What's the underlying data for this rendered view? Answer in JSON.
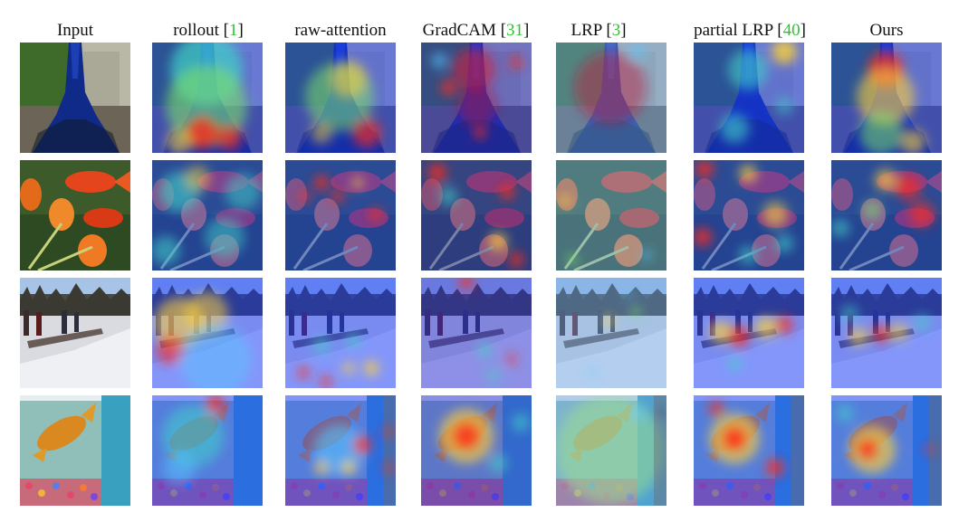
{
  "figure": {
    "columns": [
      {
        "label": "Input",
        "cite": ""
      },
      {
        "label": "rollout",
        "cite": "1"
      },
      {
        "label": "raw-attention",
        "cite": ""
      },
      {
        "label": "GradCAM",
        "cite": "31"
      },
      {
        "label": "LRP",
        "cite": "3"
      },
      {
        "label": "partial LRP",
        "cite": "40"
      },
      {
        "label": "Ours",
        "cite": ""
      }
    ],
    "rows": [
      {
        "subject": "peacock"
      },
      {
        "subject": "goldfish-and-tulips"
      },
      {
        "subject": "dog-sled-on-snow"
      },
      {
        "subject": "goldfish-in-tank"
      }
    ]
  },
  "colors": {
    "citation": "#2fc42f",
    "heat_low": "#1a3cff",
    "heat_mid": "#3fd1c8",
    "heat_high": "#ff2a1a"
  }
}
